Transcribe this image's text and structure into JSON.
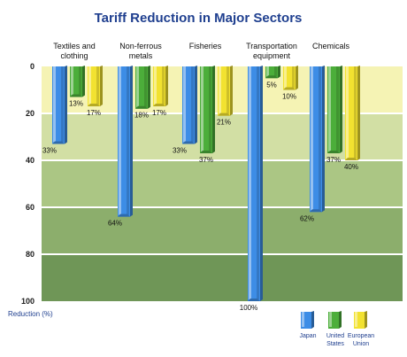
{
  "chart_data": {
    "type": "bar",
    "title": "Tariff Reduction in Major Sectors",
    "ylabel": "Reduction (%)",
    "yticks": [
      0,
      20,
      40,
      60,
      80,
      100
    ],
    "ylim": [
      0,
      100
    ],
    "y_inverted": true,
    "grid": "horizontal bands",
    "legend_position": "bottom-right",
    "categories": [
      [
        "Textiles and",
        "clothing"
      ],
      [
        "Non-ferrous",
        "metals"
      ],
      [
        "Fisheries"
      ],
      [
        "Transportation",
        "equipment"
      ],
      [
        "Chemicals"
      ]
    ],
    "series": [
      {
        "name": "Japan",
        "color": "#3d8de6",
        "values": [
          33,
          64,
          33,
          100,
          62
        ]
      },
      {
        "name": "United States",
        "color": "#4cae3a",
        "values": [
          13,
          18,
          37,
          5,
          37
        ]
      },
      {
        "name": "European Union",
        "color": "#f2e230",
        "values": [
          17,
          17,
          21,
          10,
          40
        ]
      }
    ],
    "legend": [
      [
        "Japan"
      ],
      [
        "United",
        "States"
      ],
      [
        "European",
        "Union"
      ]
    ],
    "band_colors": [
      "#f5f3b4",
      "#d2dfa4",
      "#abc684",
      "#8cae6c",
      "#6f9657"
    ]
  }
}
